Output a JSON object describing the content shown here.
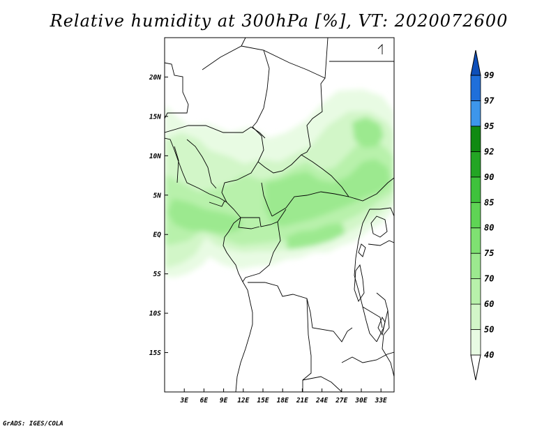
{
  "title": "Relative humidity at 300hPa [%], VT: 2020072600",
  "credit": "GrADS: IGES/COLA",
  "map": {
    "lat_ticks": [
      "20N",
      "15N",
      "10N",
      "5N",
      "EQ",
      "5S",
      "10S",
      "15S"
    ],
    "lon_ticks": [
      "3E",
      "6E",
      "9E",
      "12E",
      "15E",
      "18E",
      "21E",
      "24E",
      "27E",
      "30E",
      "33E"
    ],
    "lon_range_deg": [
      0,
      35
    ],
    "lat_range_deg": [
      -20,
      25
    ]
  },
  "colorbar": {
    "levels": [
      "40",
      "50",
      "60",
      "70",
      "75",
      "80",
      "85",
      "90",
      "92",
      "95",
      "97",
      "99"
    ],
    "colors": [
      "#ffffff",
      "#e8fbe3",
      "#d2f6c8",
      "#b8f1ab",
      "#9ce98f",
      "#7fe172",
      "#5fd455",
      "#3fc23c",
      "#23a524",
      "#108a12",
      "#3d96ea",
      "#1f6fda",
      "#0e4fb9"
    ]
  },
  "colors": {
    "coastline": "#000000",
    "frame": "#000000",
    "background": "#ffffff"
  }
}
